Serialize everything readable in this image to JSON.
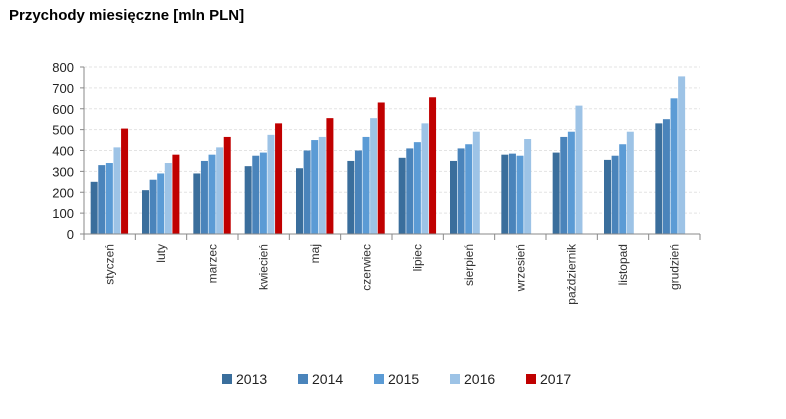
{
  "chart_data": {
    "type": "bar",
    "title": "Przychody miesięczne [mln PLN]",
    "categories": [
      "styczeń",
      "luty",
      "marzec",
      "kwiecień",
      "maj",
      "czerwiec",
      "lipiec",
      "sierpień",
      "wrzesień",
      "październik",
      "listopad",
      "grudzień"
    ],
    "series": [
      {
        "name": "2013",
        "color": "#3a6e9c",
        "values": [
          250,
          210,
          290,
          325,
          315,
          350,
          365,
          350,
          380,
          390,
          355,
          530
        ]
      },
      {
        "name": "2014",
        "color": "#4a84bb",
        "values": [
          330,
          260,
          350,
          375,
          400,
          400,
          410,
          410,
          385,
          465,
          375,
          550
        ]
      },
      {
        "name": "2015",
        "color": "#5b9bd5",
        "values": [
          340,
          290,
          380,
          390,
          450,
          465,
          440,
          430,
          375,
          490,
          430,
          650
        ]
      },
      {
        "name": "2016",
        "color": "#9dc3e6",
        "values": [
          415,
          340,
          415,
          475,
          465,
          555,
          530,
          490,
          455,
          615,
          490,
          755
        ]
      },
      {
        "name": "2017",
        "color": "#c00000",
        "values": [
          505,
          380,
          465,
          530,
          555,
          630,
          655,
          null,
          null,
          null,
          null,
          null
        ]
      }
    ],
    "yticks": [
      "0",
      "100",
      "200",
      "300",
      "400",
      "500",
      "600",
      "700",
      "800"
    ],
    "ylim": [
      0,
      800
    ],
    "grid": true,
    "legend_position": "bottom"
  }
}
